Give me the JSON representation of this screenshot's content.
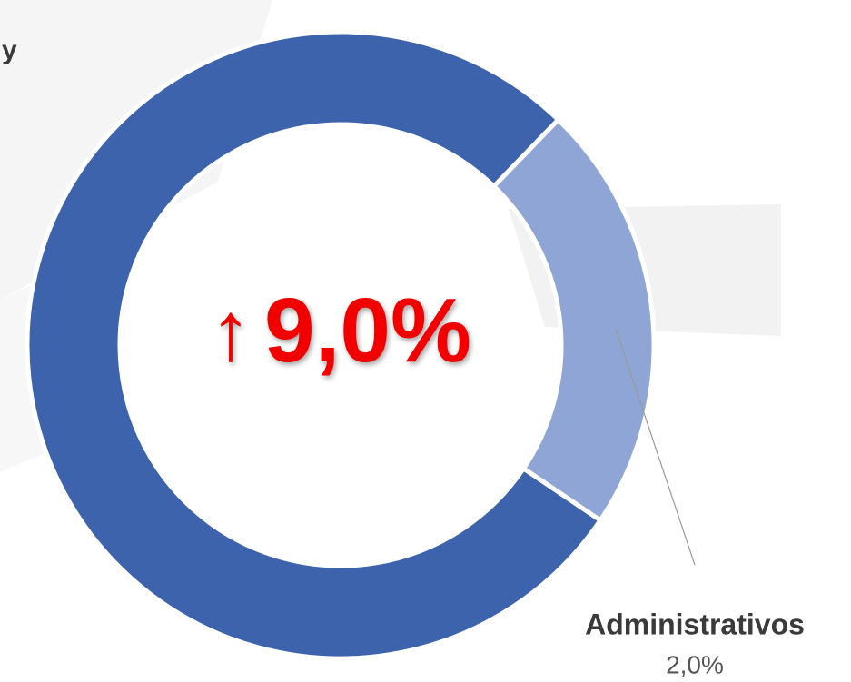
{
  "chart_data": {
    "type": "donut",
    "categories": [
      "y",
      "Administrativos"
    ],
    "values": [
      7.0,
      2.0
    ],
    "value_labels": [
      null,
      "2,0%"
    ],
    "colors": [
      "#3d63ad",
      "#8fa5d5"
    ],
    "center_arrow": "↑",
    "center_value": "9,0%"
  }
}
